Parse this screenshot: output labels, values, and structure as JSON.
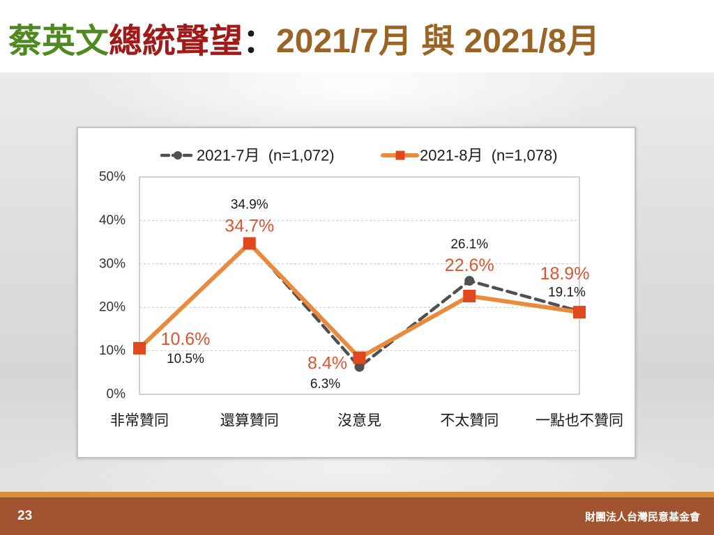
{
  "slide": {
    "title_parts": [
      {
        "text": "蔡英文",
        "color": "#4e8a1f"
      },
      {
        "text": "總統聲望",
        "color": "#a01a1a"
      },
      {
        "text": "：",
        "color": "#1a1a1a"
      },
      {
        "text": "2021/7月 與 2021/8月",
        "color": "#9a6426"
      }
    ]
  },
  "chart_data": {
    "type": "line",
    "categories": [
      "非常贊同",
      "還算贊同",
      "沒意見",
      "不太贊同",
      "一點也不贊同"
    ],
    "ylim": [
      0,
      50
    ],
    "yticks": [
      0,
      10,
      20,
      30,
      40,
      50
    ],
    "ytick_labels": [
      "0%",
      "10%",
      "20%",
      "30%",
      "40%",
      "50%"
    ],
    "grid": true,
    "legend_position": "top",
    "series": [
      {
        "name": "2021-7月  (n=1,072)",
        "values": [
          10.5,
          34.9,
          6.3,
          26.1,
          19.1
        ],
        "labels": [
          "10.5%",
          "34.9%",
          "6.3%",
          "26.1%",
          "19.1%"
        ],
        "color": "#505050",
        "marker_color": "#505050",
        "label_color": "#1a1a1a"
      },
      {
        "name": "2021-8月  (n=1,078)",
        "values": [
          10.6,
          34.7,
          8.4,
          22.6,
          18.9
        ],
        "labels": [
          "10.6%",
          "34.7%",
          "8.4%",
          "22.6%",
          "18.9%"
        ],
        "color": "#ea8a3c",
        "marker_color": "#e2461c",
        "label_color": "#dd5530"
      }
    ]
  },
  "footer": {
    "page_number": "23",
    "organization": "財團法人台灣民意基金會"
  }
}
